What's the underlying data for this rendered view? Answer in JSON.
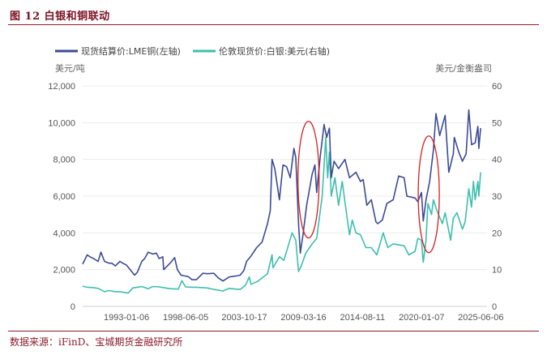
{
  "figure": {
    "title": "图 12  白银和铜联动",
    "source": "数据来源：iFinD、宝城期货金融研究所"
  },
  "chart_data": {
    "type": "line",
    "title": "",
    "x_axis": {
      "min": "1989-01-01",
      "max": "2025-12-31",
      "tick_labels": [
        "1993-01-06",
        "1998-06-05",
        "2003-10-17",
        "2009-03-16",
        "2014-08-11",
        "2020-01-07",
        "2025-06-06"
      ]
    },
    "y_left": {
      "unit_label": "美元/吨",
      "ylim": [
        0,
        12000
      ],
      "ticks": [
        "0",
        "2,000",
        "4,000",
        "6,000",
        "8,000",
        "10,000",
        "12,000"
      ]
    },
    "y_right": {
      "unit_label": "美元/金衡盎司",
      "ylim": [
        0,
        60
      ],
      "ticks": [
        "0",
        "10",
        "20",
        "30",
        "40",
        "50",
        "60"
      ]
    },
    "legend_position": "top",
    "series": [
      {
        "name": "现货结算价:LME铜(左轴)",
        "axis": "left",
        "color": "#3c4b95",
        "points": [
          [
            "1989-01-01",
            2300
          ],
          [
            "1989-06-01",
            2800
          ],
          [
            "1989-09-01",
            2700
          ],
          [
            "1990-01-01",
            2600
          ],
          [
            "1990-06-01",
            2450
          ],
          [
            "1990-09-01",
            2950
          ],
          [
            "1991-01-01",
            2450
          ],
          [
            "1991-06-01",
            2350
          ],
          [
            "1991-09-01",
            2350
          ],
          [
            "1992-01-01",
            2200
          ],
          [
            "1992-06-01",
            2450
          ],
          [
            "1992-09-01",
            2350
          ],
          [
            "1993-01-01",
            2250
          ],
          [
            "1993-06-01",
            1950
          ],
          [
            "1993-10-01",
            1700
          ],
          [
            "1994-01-01",
            1850
          ],
          [
            "1994-06-01",
            2450
          ],
          [
            "1994-09-01",
            2600
          ],
          [
            "1995-01-01",
            2950
          ],
          [
            "1995-06-01",
            2850
          ],
          [
            "1995-10-01",
            2900
          ],
          [
            "1996-01-01",
            2600
          ],
          [
            "1996-05-01",
            2700
          ],
          [
            "1996-06-01",
            2000
          ],
          [
            "1997-01-01",
            2350
          ],
          [
            "1997-06-01",
            2650
          ],
          [
            "1997-09-01",
            2000
          ],
          [
            "1998-01-01",
            1700
          ],
          [
            "1998-06-01",
            1650
          ],
          [
            "1998-09-01",
            1620
          ],
          [
            "1999-01-01",
            1450
          ],
          [
            "1999-06-01",
            1450
          ],
          [
            "2000-01-01",
            1800
          ],
          [
            "2000-06-01",
            1780
          ],
          [
            "2001-01-01",
            1800
          ],
          [
            "2001-06-01",
            1550
          ],
          [
            "2001-11-01",
            1380
          ],
          [
            "2002-06-01",
            1600
          ],
          [
            "2003-01-01",
            1650
          ],
          [
            "2003-06-01",
            1700
          ],
          [
            "2003-10-01",
            1950
          ],
          [
            "2004-01-01",
            2450
          ],
          [
            "2004-06-01",
            2750
          ],
          [
            "2004-12-01",
            3200
          ],
          [
            "2005-06-01",
            3500
          ],
          [
            "2005-12-01",
            4500
          ],
          [
            "2006-03-01",
            5200
          ],
          [
            "2006-05-01",
            8000
          ],
          [
            "2006-08-01",
            7500
          ],
          [
            "2007-01-01",
            5800
          ],
          [
            "2007-05-01",
            7700
          ],
          [
            "2007-09-01",
            7600
          ],
          [
            "2008-01-01",
            7000
          ],
          [
            "2008-05-01",
            8600
          ],
          [
            "2008-07-01",
            8100
          ],
          [
            "2008-10-01",
            4500
          ],
          [
            "2008-12-01",
            2900
          ],
          [
            "2009-03-01",
            3900
          ],
          [
            "2009-07-01",
            5500
          ],
          [
            "2010-01-01",
            7200
          ],
          [
            "2010-04-01",
            7700
          ],
          [
            "2010-06-01",
            6200
          ],
          [
            "2010-10-01",
            8200
          ],
          [
            "2011-02-01",
            9900
          ],
          [
            "2011-05-01",
            9200
          ],
          [
            "2011-08-01",
            9700
          ],
          [
            "2011-10-01",
            7000
          ],
          [
            "2012-01-01",
            7900
          ],
          [
            "2012-06-01",
            7500
          ],
          [
            "2013-01-01",
            8000
          ],
          [
            "2013-06-01",
            7000
          ],
          [
            "2014-01-01",
            7300
          ],
          [
            "2014-06-01",
            6800
          ],
          [
            "2014-09-01",
            6900
          ],
          [
            "2015-01-01",
            5500
          ],
          [
            "2015-06-01",
            5800
          ],
          [
            "2015-11-01",
            4600
          ],
          [
            "2016-01-01",
            4500
          ],
          [
            "2016-06-01",
            4700
          ],
          [
            "2016-11-01",
            5600
          ],
          [
            "2017-06-01",
            5800
          ],
          [
            "2017-12-01",
            7100
          ],
          [
            "2018-06-01",
            7000
          ],
          [
            "2018-09-01",
            6000
          ],
          [
            "2019-06-01",
            5900
          ],
          [
            "2019-09-01",
            5700
          ],
          [
            "2020-01-01",
            6200
          ],
          [
            "2020-03-01",
            4650
          ],
          [
            "2020-06-01",
            5800
          ],
          [
            "2020-10-01",
            6800
          ],
          [
            "2021-02-01",
            8500
          ],
          [
            "2021-05-01",
            10500
          ],
          [
            "2021-09-01",
            9300
          ],
          [
            "2022-03-01",
            10400
          ],
          [
            "2022-07-01",
            7300
          ],
          [
            "2022-12-01",
            8300
          ],
          [
            "2023-01-01",
            9200
          ],
          [
            "2023-06-01",
            8400
          ],
          [
            "2023-10-01",
            7900
          ],
          [
            "2024-02-01",
            8300
          ],
          [
            "2024-05-01",
            10700
          ],
          [
            "2024-08-01",
            8800
          ],
          [
            "2024-12-01",
            8900
          ],
          [
            "2025-03-01",
            9800
          ],
          [
            "2025-04-01",
            8600
          ],
          [
            "2025-06-01",
            9700
          ]
        ]
      },
      {
        "name": "伦敦现货价:白银:美元(右轴)",
        "axis": "right",
        "color": "#3dbfae",
        "points": [
          [
            "1989-01-01",
            5.5
          ],
          [
            "1989-06-01",
            5.2
          ],
          [
            "1990-01-01",
            5.1
          ],
          [
            "1990-06-01",
            4.9
          ],
          [
            "1991-01-01",
            4.0
          ],
          [
            "1991-06-01",
            4.3
          ],
          [
            "1992-01-01",
            4.0
          ],
          [
            "1992-06-01",
            4.0
          ],
          [
            "1993-01-01",
            3.7
          ],
          [
            "1993-03-01",
            3.6
          ],
          [
            "1993-08-01",
            5.0
          ],
          [
            "1994-01-01",
            5.2
          ],
          [
            "1994-06-01",
            5.4
          ],
          [
            "1995-01-01",
            4.8
          ],
          [
            "1995-06-01",
            5.4
          ],
          [
            "1996-01-01",
            5.3
          ],
          [
            "1996-06-01",
            5.1
          ],
          [
            "1997-01-01",
            4.8
          ],
          [
            "1997-10-01",
            4.7
          ],
          [
            "1998-02-01",
            7.0
          ],
          [
            "1998-06-01",
            5.3
          ],
          [
            "1999-01-01",
            5.2
          ],
          [
            "1999-06-01",
            5.2
          ],
          [
            "2000-01-01",
            5.1
          ],
          [
            "2000-06-01",
            5.0
          ],
          [
            "2001-01-01",
            4.6
          ],
          [
            "2001-11-01",
            4.2
          ],
          [
            "2002-06-01",
            4.9
          ],
          [
            "2003-01-01",
            4.7
          ],
          [
            "2003-06-01",
            4.6
          ],
          [
            "2003-12-01",
            5.8
          ],
          [
            "2004-04-01",
            8.0
          ],
          [
            "2004-06-01",
            6.0
          ],
          [
            "2005-01-01",
            6.8
          ],
          [
            "2005-12-01",
            8.9
          ],
          [
            "2006-05-01",
            14.0
          ],
          [
            "2006-06-01",
            10.5
          ],
          [
            "2007-01-01",
            13.5
          ],
          [
            "2007-06-01",
            12.5
          ],
          [
            "2008-03-01",
            20.0
          ],
          [
            "2008-07-01",
            18.0
          ],
          [
            "2008-10-01",
            9.5
          ],
          [
            "2009-01-01",
            11.0
          ],
          [
            "2009-06-01",
            14.5
          ],
          [
            "2010-01-01",
            17.0
          ],
          [
            "2010-06-01",
            18.5
          ],
          [
            "2010-12-01",
            30.0
          ],
          [
            "2011-04-01",
            46.0
          ],
          [
            "2011-06-01",
            35.0
          ],
          [
            "2011-08-01",
            42.0
          ],
          [
            "2011-10-01",
            30.0
          ],
          [
            "2012-02-01",
            35.0
          ],
          [
            "2012-06-01",
            27.5
          ],
          [
            "2012-10-01",
            34.0
          ],
          [
            "2013-04-01",
            23.0
          ],
          [
            "2013-06-01",
            19.5
          ],
          [
            "2013-09-01",
            23.5
          ],
          [
            "2014-01-01",
            20.0
          ],
          [
            "2014-06-01",
            19.5
          ],
          [
            "2014-12-01",
            16.0
          ],
          [
            "2015-06-01",
            16.0
          ],
          [
            "2015-12-01",
            14.0
          ],
          [
            "2016-07-01",
            20.0
          ],
          [
            "2016-12-01",
            16.0
          ],
          [
            "2017-06-01",
            17.0
          ],
          [
            "2018-06-01",
            16.5
          ],
          [
            "2018-11-01",
            14.0
          ],
          [
            "2019-06-01",
            15.0
          ],
          [
            "2019-09-01",
            18.5
          ],
          [
            "2020-01-01",
            18.0
          ],
          [
            "2020-03-01",
            12.0
          ],
          [
            "2020-06-01",
            18.0
          ],
          [
            "2020-08-01",
            28.0
          ],
          [
            "2020-12-01",
            25.0
          ],
          [
            "2021-02-01",
            29.0
          ],
          [
            "2021-06-01",
            26.0
          ],
          [
            "2021-12-01",
            22.5
          ],
          [
            "2022-03-01",
            25.5
          ],
          [
            "2022-09-01",
            18.0
          ],
          [
            "2022-12-01",
            24.0
          ],
          [
            "2023-04-01",
            25.5
          ],
          [
            "2023-10-01",
            21.0
          ],
          [
            "2024-01-01",
            23.0
          ],
          [
            "2024-05-01",
            32.0
          ],
          [
            "2024-08-01",
            27.0
          ],
          [
            "2024-10-01",
            34.0
          ],
          [
            "2024-12-01",
            29.0
          ],
          [
            "2025-03-01",
            34.0
          ],
          [
            "2025-04-01",
            30.0
          ],
          [
            "2025-06-01",
            36.5
          ]
        ]
      }
    ],
    "annotations": [
      {
        "type": "ellipse",
        "color": "#d21f1f",
        "center_date": "2009-09-01",
        "center_value_left": 6900
      },
      {
        "type": "ellipse",
        "color": "#d21f1f",
        "center_date": "2020-09-01",
        "center_value_left": 6100
      }
    ]
  }
}
